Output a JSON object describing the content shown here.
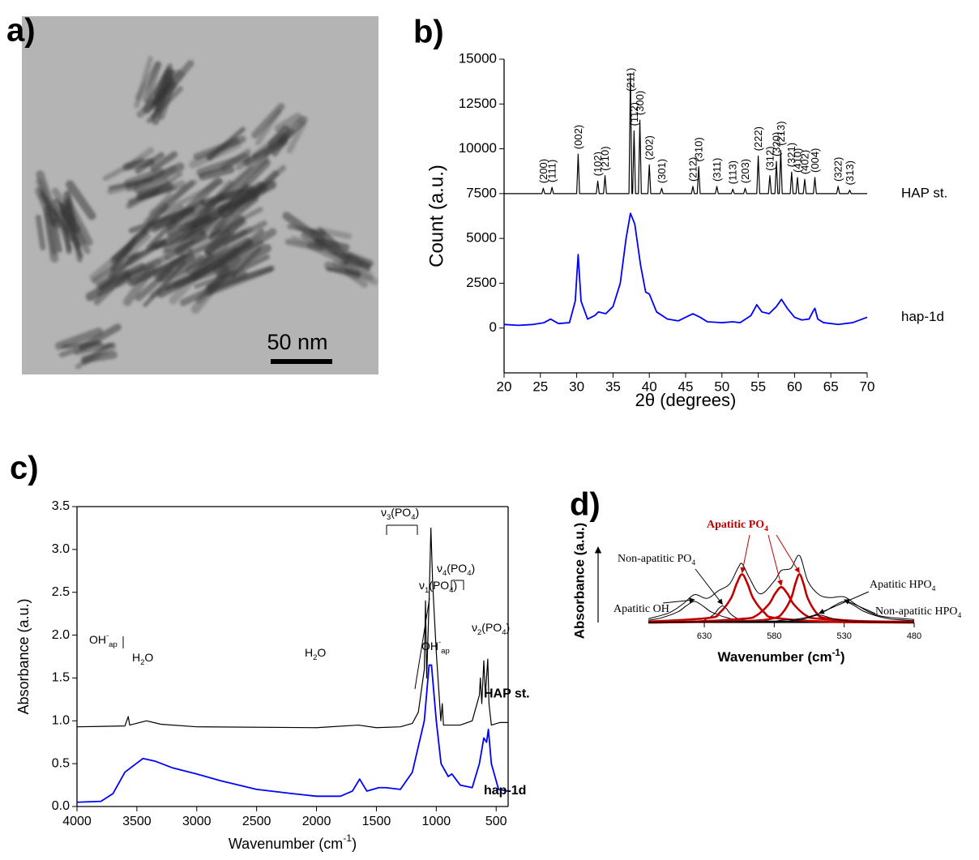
{
  "panel_labels": [
    "a)",
    "b)",
    "c)",
    "d)"
  ],
  "image": {
    "scale_bar_label": "50 nm"
  },
  "chart_data": [
    {
      "type": "line",
      "xlabel": "2θ (degrees)",
      "ylabel": "Count (a.u.)",
      "xlim": [
        20,
        70
      ],
      "xticks": [
        20,
        25,
        30,
        35,
        40,
        45,
        50,
        55,
        60,
        65,
        70
      ],
      "ylim": [
        -2500,
        15000
      ],
      "yticks": [
        0,
        2500,
        5000,
        7500,
        10000,
        12500,
        15000
      ],
      "series": [
        {
          "name": "HAP st.",
          "color": "#000000",
          "x": [
            20,
            25.2,
            25.4,
            25.6,
            26.4,
            26.6,
            26.8,
            30.0,
            30.2,
            30.4,
            32.7,
            32.9,
            33.1,
            33.7,
            33.9,
            34.1,
            37.2,
            37.4,
            37.6,
            37.7,
            37.9,
            38.1,
            38.5,
            38.7,
            38.9,
            39.8,
            40.0,
            40.2,
            41.5,
            41.7,
            41.9,
            45.8,
            46.0,
            46.2,
            46.6,
            46.8,
            47.0,
            49.1,
            49.3,
            49.5,
            51.3,
            51.5,
            51.7,
            53.0,
            53.2,
            53.4,
            54.8,
            55.0,
            55.2,
            56.4,
            56.6,
            56.8,
            57.3,
            57.5,
            57.7,
            57.9,
            58.1,
            58.3,
            59.4,
            59.6,
            59.8,
            60.2,
            60.4,
            60.6,
            61.2,
            61.4,
            61.6,
            62.6,
            62.8,
            63.0,
            65.8,
            66.0,
            66.2,
            67.4,
            67.6,
            67.8,
            70
          ],
          "values": [
            7500,
            7500,
            7800,
            7500,
            7500,
            7850,
            7500,
            7500,
            9700,
            7500,
            7500,
            8200,
            7500,
            7500,
            8500,
            7500,
            7500,
            14200,
            7500,
            7500,
            11000,
            7500,
            7500,
            11600,
            7500,
            7500,
            9100,
            7500,
            7500,
            7800,
            7500,
            7500,
            7900,
            7500,
            7500,
            9000,
            7500,
            7500,
            7900,
            7500,
            7500,
            7750,
            7500,
            7500,
            7800,
            7500,
            7500,
            9600,
            7500,
            7500,
            8500,
            7500,
            7500,
            9300,
            7500,
            7500,
            9900,
            7500,
            7500,
            8700,
            7500,
            7500,
            8400,
            7500,
            7500,
            8300,
            7500,
            7500,
            8400,
            7500,
            7500,
            7900,
            7500,
            7500,
            7700,
            7500,
            7500
          ]
        },
        {
          "name": "hap-1d",
          "color": "#0000ff",
          "x": [
            20,
            22,
            24,
            25.5,
            26.4,
            27.5,
            29,
            29.8,
            30.2,
            30.6,
            31.5,
            32.5,
            33,
            34,
            35,
            36,
            36.8,
            37.4,
            38,
            38.8,
            39.5,
            40,
            41,
            42.5,
            44,
            45,
            46,
            47,
            48,
            50,
            51.5,
            52.5,
            54,
            54.8,
            55.5,
            56.5,
            57.5,
            58.2,
            59,
            60,
            61,
            62,
            62.5,
            62.8,
            63.2,
            64,
            66,
            68,
            70
          ],
          "values": [
            200,
            150,
            200,
            300,
            500,
            250,
            300,
            1500,
            4100,
            1500,
            500,
            700,
            900,
            800,
            1200,
            2500,
            5000,
            6400,
            5800,
            3500,
            2000,
            1900,
            900,
            500,
            400,
            600,
            800,
            600,
            350,
            300,
            350,
            300,
            700,
            1300,
            900,
            800,
            1200,
            1600,
            1100,
            600,
            450,
            500,
            900,
            1100,
            500,
            300,
            200,
            300,
            600
          ]
        }
      ],
      "peak_labels": [
        {
          "label": "(200)",
          "x": 25.4
        },
        {
          "label": "(111)",
          "x": 26.6
        },
        {
          "label": "(002)",
          "x": 30.2
        },
        {
          "label": "(102)",
          "x": 32.9
        },
        {
          "label": "(210)",
          "x": 33.9
        },
        {
          "label": "(211)",
          "x": 37.4
        },
        {
          "label": "(112)",
          "x": 37.9
        },
        {
          "label": "(300)",
          "x": 38.7
        },
        {
          "label": "(202)",
          "x": 40.0
        },
        {
          "label": "(301)",
          "x": 41.7
        },
        {
          "label": "(212)",
          "x": 46.0
        },
        {
          "label": "(310)",
          "x": 46.8
        },
        {
          "label": "(311)",
          "x": 49.3
        },
        {
          "label": "(113)",
          "x": 51.5
        },
        {
          "label": "(203)",
          "x": 53.2
        },
        {
          "label": "(222)",
          "x": 55.0
        },
        {
          "label": "(312)",
          "x": 56.6
        },
        {
          "label": "(320)",
          "x": 57.5
        },
        {
          "label": "(213)",
          "x": 58.1
        },
        {
          "label": "(321)",
          "x": 59.6
        },
        {
          "label": "(410)",
          "x": 60.4
        },
        {
          "label": "(402)",
          "x": 61.4
        },
        {
          "label": "(004)",
          "x": 62.8
        },
        {
          "label": "(322)",
          "x": 66.0
        },
        {
          "label": "(313)",
          "x": 67.6
        }
      ]
    },
    {
      "type": "line",
      "xlabel": [
        {
          "t": "Wavenumber (cm"
        },
        {
          "sup": "-1"
        },
        {
          "t": ")"
        }
      ],
      "ylabel": "Absorbance (a.u.)",
      "xlim": [
        4000,
        400
      ],
      "xticks": [
        4000,
        3500,
        3000,
        2500,
        2000,
        1500,
        1000,
        500
      ],
      "ylim": [
        0,
        3.5
      ],
      "yticks": [
        {
          "value": 0,
          "label": "0.0"
        },
        0.5,
        {
          "value": 1,
          "label": "1.0"
        },
        1.5,
        {
          "value": 2,
          "label": "2.0"
        },
        2.5,
        {
          "value": 3,
          "label": "3.0"
        },
        3.5
      ],
      "series": [
        {
          "name": "HAP st.",
          "color": "#000000",
          "x": [
            4000,
            3600,
            3572,
            3560,
            3420,
            3300,
            3000,
            2000,
            1650,
            1500,
            1300,
            1200,
            1150,
            1100,
            1090,
            1080,
            1060,
            1045,
            1030,
            1000,
            962,
            950,
            940,
            800,
            700,
            640,
            632,
            620,
            603,
            590,
            570,
            560,
            540,
            470,
            400
          ],
          "values": [
            0.93,
            0.94,
            1.05,
            0.95,
            1.0,
            0.96,
            0.93,
            0.92,
            0.95,
            0.92,
            0.93,
            0.97,
            1.1,
            1.6,
            2.4,
            1.5,
            2.4,
            3.25,
            2.6,
            1.8,
            1.0,
            1.2,
            0.95,
            0.95,
            1.0,
            1.3,
            1.5,
            1.2,
            1.7,
            1.3,
            1.72,
            1.2,
            0.95,
            0.98,
            0.98
          ]
        },
        {
          "name": "hap-1d",
          "color": "#0000ff",
          "x": [
            4000,
            3800,
            3700,
            3600,
            3450,
            3350,
            3200,
            3000,
            2800,
            2500,
            2200,
            2000,
            1800,
            1700,
            1640,
            1580,
            1480,
            1420,
            1300,
            1200,
            1100,
            1060,
            1040,
            1000,
            960,
            900,
            870,
            800,
            700,
            640,
            603,
            580,
            565,
            540,
            480,
            400
          ],
          "values": [
            0.05,
            0.06,
            0.15,
            0.4,
            0.56,
            0.53,
            0.45,
            0.38,
            0.3,
            0.2,
            0.15,
            0.12,
            0.12,
            0.18,
            0.32,
            0.18,
            0.22,
            0.22,
            0.2,
            0.4,
            1.0,
            1.65,
            1.65,
            1.0,
            0.5,
            0.35,
            0.38,
            0.25,
            0.22,
            0.5,
            0.8,
            0.75,
            0.9,
            0.5,
            0.2,
            0.18
          ]
        }
      ],
      "annotations": [
        [
          {
            "t": "OH"
          },
          {
            "sup": "-"
          },
          {
            "sub": "ap"
          }
        ],
        [
          {
            "t": "H"
          },
          {
            "sub": "2"
          },
          {
            "t": "O"
          }
        ],
        [
          {
            "t": "H"
          },
          {
            "sub": "2"
          },
          {
            "t": "O"
          }
        ],
        [
          {
            "t": "ν"
          },
          {
            "sub": "3"
          },
          {
            "t": "(PO"
          },
          {
            "sub": "4"
          },
          {
            "t": ")"
          }
        ],
        [
          {
            "t": "ν"
          },
          {
            "sub": "1"
          },
          {
            "t": "(PO"
          },
          {
            "sub": "4"
          },
          {
            "t": ")"
          }
        ],
        [
          {
            "t": "ν"
          },
          {
            "sub": "4"
          },
          {
            "t": "(PO"
          },
          {
            "sub": "4"
          },
          {
            "t": ")"
          }
        ],
        [
          {
            "t": "OH"
          },
          {
            "sup": "-"
          },
          {
            "sub": "ap"
          }
        ],
        [
          {
            "t": "ν"
          },
          {
            "sub": "2"
          },
          {
            "t": "(PO"
          },
          {
            "sub": "4"
          },
          {
            "t": ")"
          }
        ]
      ]
    },
    {
      "type": "line",
      "xlabel": [
        {
          "t": "Wavenumber (cm"
        },
        {
          "sup": "-1"
        },
        {
          "t": ")"
        }
      ],
      "ylabel": "Absorbance (a.u.)",
      "xlim": [
        670,
        480
      ],
      "xticks": [
        630,
        580,
        530,
        480
      ],
      "ylim": [
        0,
        1
      ],
      "series": [
        {
          "name": [
            {
              "t": "Apatitic OH"
            }
          ],
          "color": "#000000",
          "curves": [
            {
              "x": [
                670,
                661,
                649,
                643,
                637,
                631,
                625,
                613,
                601,
                560,
                480
              ],
              "values": [
                0.03,
                0.06,
                0.14,
                0.22,
                0.28,
                0.22,
                0.14,
                0.06,
                0.03,
                0.01,
                0
              ]
            }
          ]
        },
        {
          "name": [
            {
              "t": "Non-apatitic PO"
            },
            {
              "sub": "4"
            }
          ],
          "color": "#000000",
          "curves": [
            {
              "x": [
                670,
                635,
                629,
                623,
                620,
                617,
                614,
                611,
                605,
                599,
                480
              ],
              "values": [
                0,
                0.02,
                0.04,
                0.11,
                0.18,
                0.22,
                0.18,
                0.11,
                0.04,
                0.02,
                0
              ]
            }
          ]
        },
        {
          "name": [
            {
              "t": "Apatitic PO"
            },
            {
              "sub": "4"
            }
          ],
          "color": "#c00000",
          "bold": true,
          "curves": [
            {
              "x": [
                670,
                627,
                619,
                611,
                607,
                603,
                599,
                595,
                587,
                579,
                540,
                480
              ],
              "values": [
                0.01,
                0.06,
                0.13,
                0.32,
                0.51,
                0.64,
                0.51,
                0.32,
                0.13,
                0.06,
                0.01,
                0
              ]
            },
            {
              "x": [
                670,
                640,
                602,
                593,
                584,
                579.5,
                575,
                570.5,
                566,
                557,
                548,
                510,
                480
              ],
              "values": [
                0,
                0.01,
                0.05,
                0.09,
                0.24,
                0.38,
                0.47,
                0.38,
                0.24,
                0.09,
                0.05,
                0.01,
                0
              ]
            },
            {
              "x": [
                670,
                600,
                580,
                574,
                568,
                565,
                562,
                559,
                556,
                550,
                544,
                520,
                480
              ],
              "values": [
                0,
                0.02,
                0.06,
                0.13,
                0.32,
                0.51,
                0.64,
                0.51,
                0.32,
                0.13,
                0.06,
                0.02,
                0.01
              ]
            }
          ]
        },
        {
          "name": [
            {
              "t": "Apatitic HPO"
            },
            {
              "sub": "4"
            }
          ],
          "color": "#000000",
          "curves": [
            {
              "x": [
                670,
                600,
                578,
                568,
                558,
                548,
                538,
                528,
                518,
                480
              ],
              "values": [
                0,
                0.01,
                0.01,
                0.02,
                0.05,
                0.1,
                0.05,
                0.02,
                0.01,
                0
              ]
            }
          ]
        },
        {
          "name": [
            {
              "t": "Non-apatitic HPO"
            },
            {
              "sub": "4"
            }
          ],
          "color": "#000000",
          "curves": [
            {
              "x": [
                670,
                590,
                575,
                560,
                545,
                537.5,
                530,
                522.5,
                515,
                500,
                485,
                480
              ],
              "values": [
                0.005,
                0.016,
                0.028,
                0.056,
                0.14,
                0.22,
                0.28,
                0.22,
                0.14,
                0.056,
                0.028,
                0.025
              ]
            }
          ]
        },
        {
          "color": "#000000",
          "curves": [
            {
              "x": [
                670,
                655,
                645,
                637,
                628,
                620,
                612,
                606,
                603,
                598,
                590,
                580,
                575,
                568,
                562,
                556,
                548,
                540,
                530,
                520,
                505,
                480
              ],
              "values": [
                0.05,
                0.13,
                0.25,
                0.37,
                0.32,
                0.42,
                0.51,
                0.72,
                0.78,
                0.6,
                0.38,
                0.55,
                0.69,
                0.72,
                0.89,
                0.55,
                0.37,
                0.33,
                0.34,
                0.22,
                0.09,
                0.04
              ]
            }
          ]
        }
      ]
    }
  ]
}
